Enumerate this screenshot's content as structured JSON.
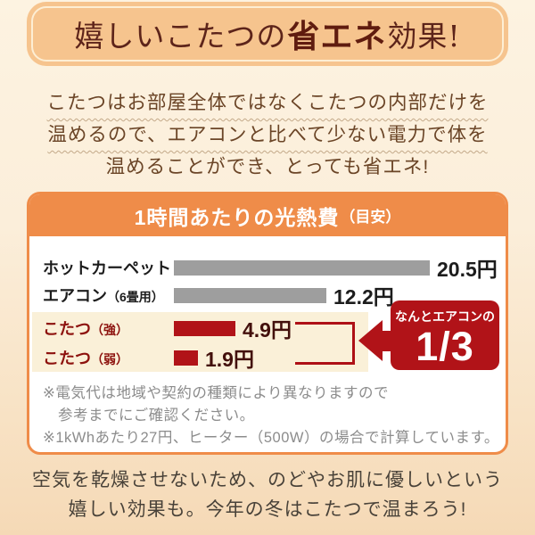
{
  "title": {
    "prefix": "嬉しいこたつの",
    "emphasis": "省エネ",
    "suffix": "効果!"
  },
  "intro": {
    "lines": [
      {
        "text": "こたつはお部屋全体ではなくこたつの内部だけを",
        "underline": true
      },
      {
        "text": "温めるので、エアコンと比べて少ない電力で体を",
        "underline": true
      },
      {
        "text": "温めることができ、とっても省エネ!",
        "underline": false
      }
    ]
  },
  "chart": {
    "header_title": "1時間あたりの光熱費",
    "header_suffix": "（目安）",
    "badge": {
      "caption": "なんとエアコンの",
      "value": "1/3"
    },
    "notes": [
      "※電気代は地域や契約の種類により異なりますので",
      "　参考までにご確認ください。",
      "※1kWhあたり27円、ヒーター（500W）の場合で計算しています。"
    ]
  },
  "chart_data": {
    "type": "bar",
    "orientation": "horizontal",
    "title": "1時間あたりの光熱費（目安）",
    "unit": "円",
    "categories": [
      "ホットカーペット",
      "エアコン（6畳用）",
      "こたつ（強）",
      "こたつ（弱）"
    ],
    "values": [
      20.5,
      12.2,
      4.9,
      1.9
    ],
    "xlim": [
      0,
      22
    ],
    "annotation": "こたつはなんとエアコンの1/3",
    "rows": [
      {
        "label": "ホットカーペット",
        "sub": "",
        "value": 20.5,
        "value_label": "20.5円",
        "bar_color": "#9e9e9e",
        "label_color": "#1c1c1c",
        "value_color": "#1c1c1c",
        "highlight": false
      },
      {
        "label": "エアコン",
        "sub": "（6畳用）",
        "value": 12.2,
        "value_label": "12.2円",
        "bar_color": "#9e9e9e",
        "label_color": "#1c1c1c",
        "value_color": "#1c1c1c",
        "highlight": false
      },
      {
        "label": "こたつ",
        "sub": "（強）",
        "value": 4.9,
        "value_label": "4.9円",
        "bar_color": "#b11318",
        "label_color": "#8d120e",
        "value_color": "#43100c",
        "highlight": true
      },
      {
        "label": "こたつ",
        "sub": "（弱）",
        "value": 1.9,
        "value_label": "1.9円",
        "bar_color": "#b11318",
        "label_color": "#8d120e",
        "value_color": "#43100c",
        "highlight": true
      }
    ]
  },
  "outro": {
    "lines": [
      "空気を乾燥させないため、のどやお肌に優しいという",
      "嬉しい効果も。今年の冬はこたつで温まろう!"
    ]
  },
  "colors": {
    "accent_orange": "#ef8c49",
    "brand_red": "#b11318",
    "bar_gray": "#9e9e9e",
    "cream_band": "#faf0d8",
    "title_box": "#f6c48e",
    "title_text": "#5d241a",
    "intro_text": "#6b4527",
    "note_gray": "#8c8c8c"
  }
}
